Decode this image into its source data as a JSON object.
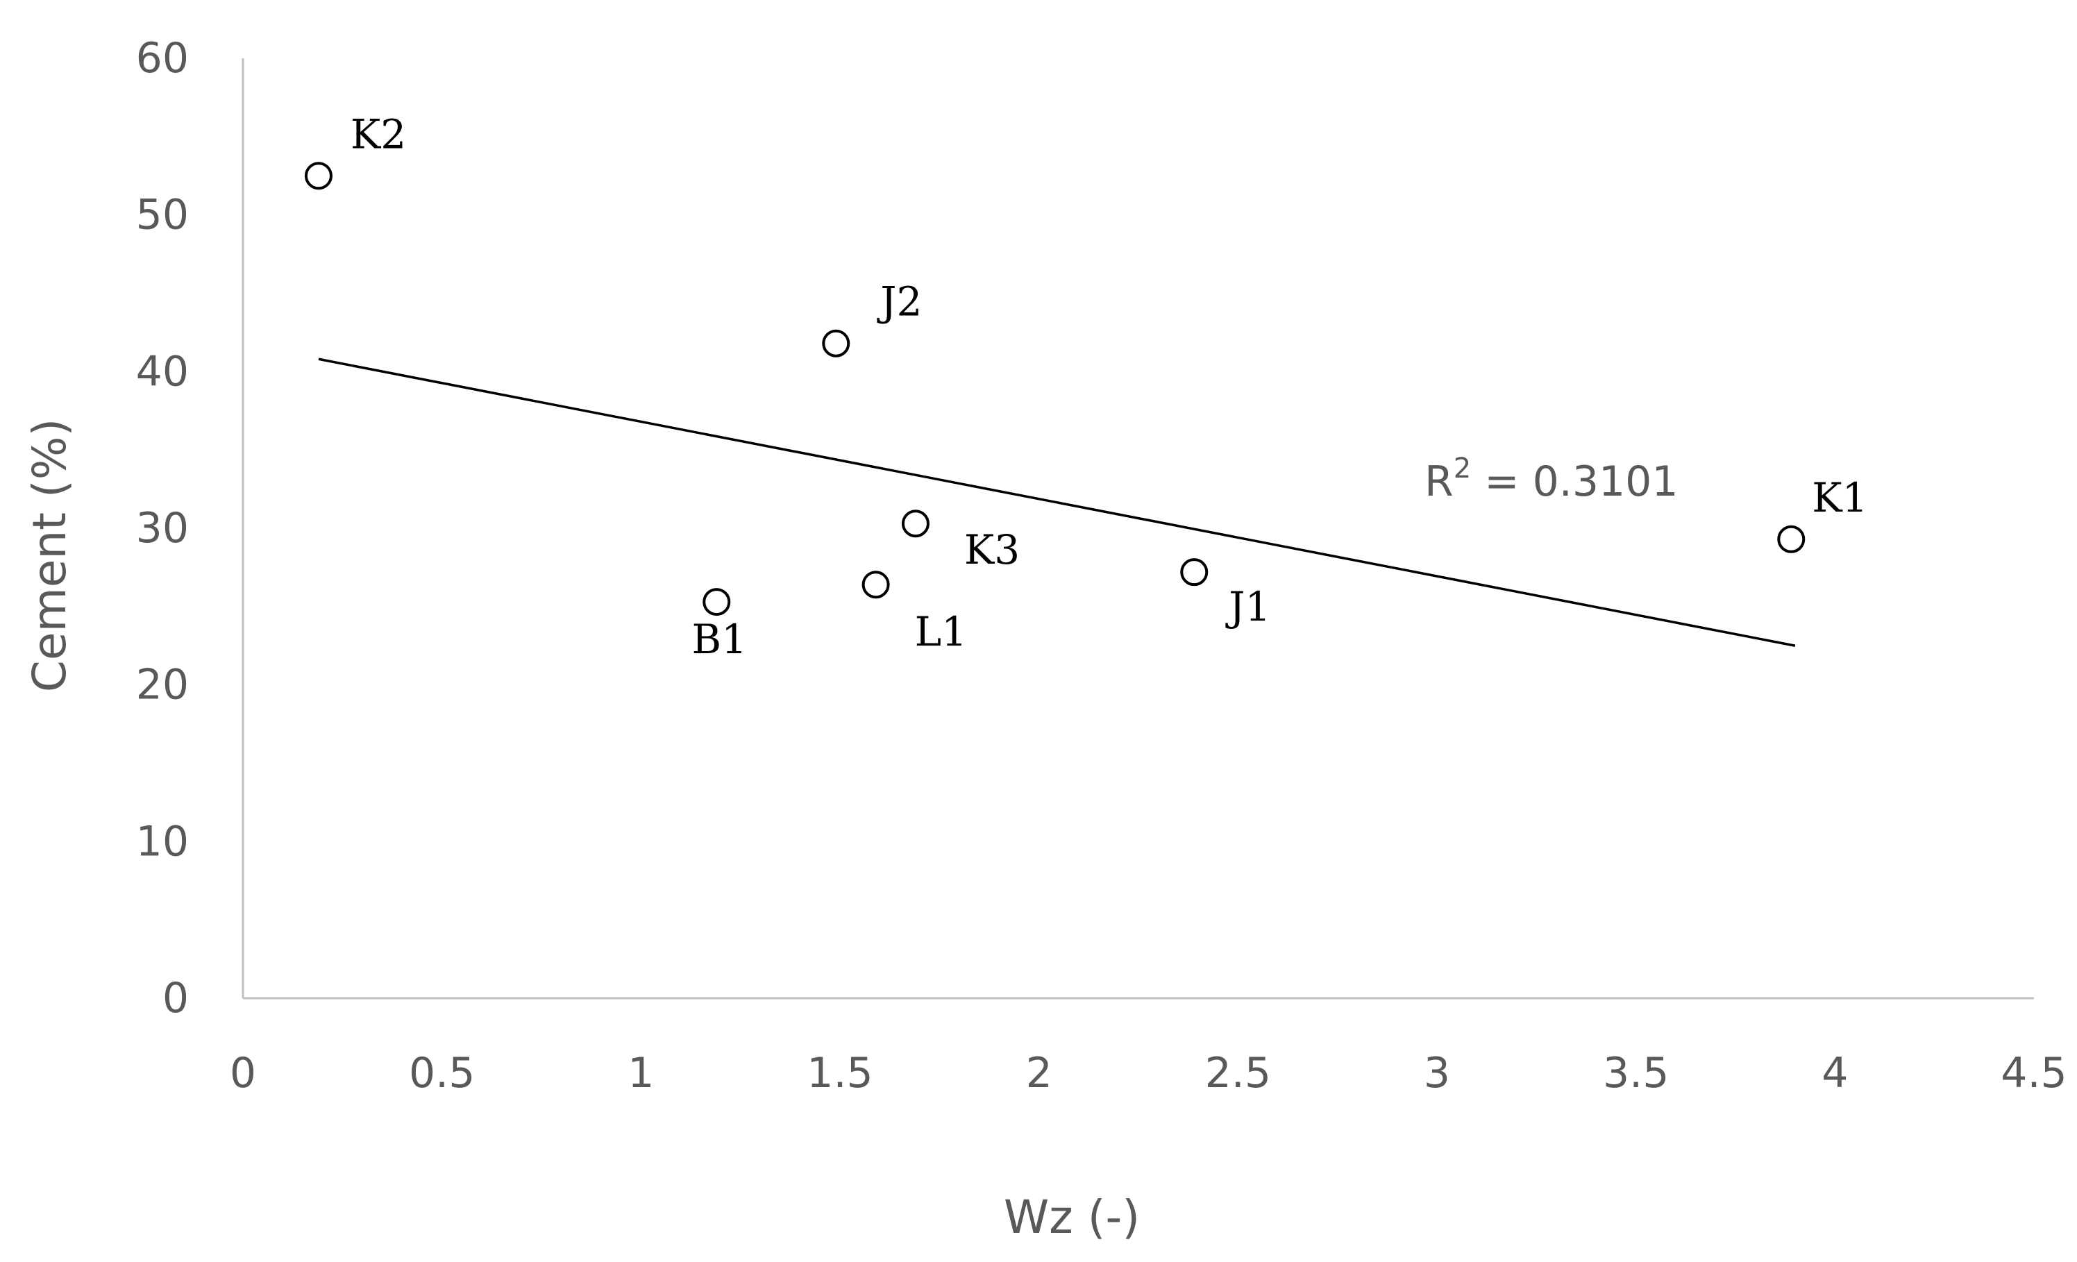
{
  "chart_data": {
    "type": "scatter",
    "xlabel": "Wz (-)",
    "ylabel": "Cement (%)",
    "xlim": [
      0,
      4.5
    ],
    "ylim": [
      0,
      60
    ],
    "x_ticks": [
      "0",
      "0.5",
      "1",
      "1.5",
      "2",
      "2.5",
      "3",
      "3.5",
      "4",
      "4.5"
    ],
    "y_ticks": [
      "0",
      "10",
      "20",
      "30",
      "40",
      "50",
      "60"
    ],
    "points": [
      {
        "label": "K2",
        "x": 0.19,
        "y": 52.5
      },
      {
        "label": "J2",
        "x": 1.49,
        "y": 41.8
      },
      {
        "label": "K3",
        "x": 1.69,
        "y": 30.3
      },
      {
        "label": "L1",
        "x": 1.59,
        "y": 26.4
      },
      {
        "label": "B1",
        "x": 1.19,
        "y": 25.3
      },
      {
        "label": "J1",
        "x": 2.39,
        "y": 27.2
      },
      {
        "label": "K1",
        "x": 3.89,
        "y": 29.3
      }
    ],
    "trendline": {
      "type": "linear",
      "x": [
        0.19,
        3.9
      ],
      "y": [
        40.8,
        22.5
      ],
      "r2_prefix": "R",
      "r2_exponent": "2",
      "r2_value": " = 0.3101"
    },
    "grid": false,
    "legend": "none"
  }
}
